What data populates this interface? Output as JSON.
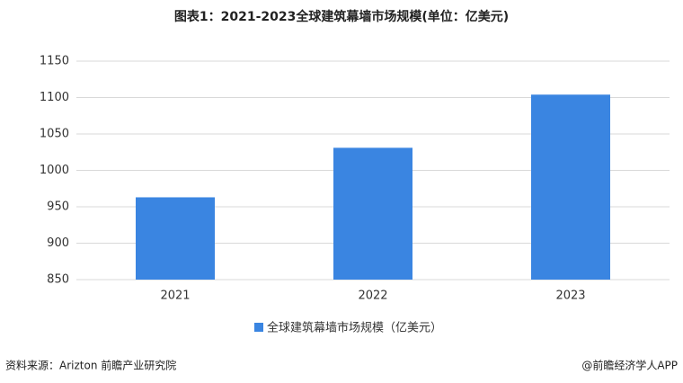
{
  "chart_data": {
    "type": "bar",
    "title": "图表1：2021-2023全球建筑幕墙市场规模(单位：亿美元)",
    "categories": [
      "2021",
      "2022",
      "2023"
    ],
    "series": [
      {
        "name": "全球建筑幕墙市场规模（亿美元）",
        "color": "#3a85e1",
        "values": [
          963,
          1031,
          1104
        ]
      }
    ],
    "ylim": [
      850,
      1150
    ],
    "yticks": [
      850,
      900,
      950,
      1000,
      1050,
      1100,
      1150
    ],
    "grid": true,
    "legend": "bottom",
    "source": "资料来源：Arizton 前瞻产业研究院",
    "credit": "@前瞻经济学人APP"
  }
}
